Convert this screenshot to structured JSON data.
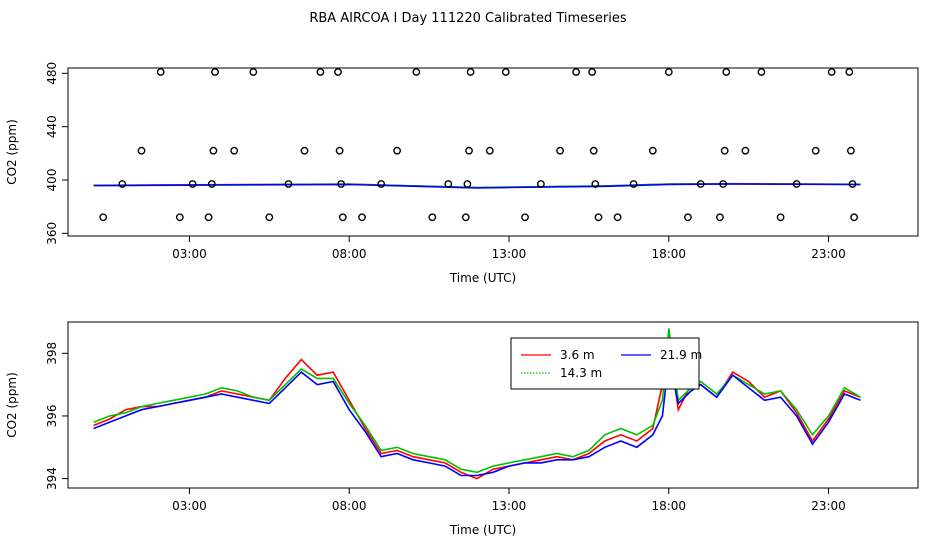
{
  "title": "RBA AIRCOA I  Day 111220  Calibrated Timeseries",
  "colors": {
    "red": "#ff0000",
    "green": "#00c000",
    "blue": "#0000ff",
    "axis": "#000000"
  },
  "chart_data": [
    {
      "type": "scatter+line",
      "xlabel": "Time (UTC)",
      "ylabel": "CO2 (ppm)",
      "xlim_hours": [
        -0.8,
        25.8
      ],
      "ylim": [
        358,
        484
      ],
      "xticks": [
        {
          "hour": 3,
          "label": "03:00"
        },
        {
          "hour": 8,
          "label": "08:00"
        },
        {
          "hour": 13,
          "label": "13:00"
        },
        {
          "hour": 18,
          "label": "18:00"
        },
        {
          "hour": 23,
          "label": "23:00"
        }
      ],
      "yticks": [
        360,
        400,
        440,
        480
      ],
      "ytick_labels": [
        "360",
        "400",
        "440",
        "480"
      ],
      "grid": false,
      "points": [
        {
          "x": 0.3,
          "y": 372
        },
        {
          "x": 0.9,
          "y": 397
        },
        {
          "x": 1.5,
          "y": 422
        },
        {
          "x": 2.1,
          "y": 481
        },
        {
          "x": 2.7,
          "y": 372
        },
        {
          "x": 3.1,
          "y": 397
        },
        {
          "x": 3.6,
          "y": 372
        },
        {
          "x": 3.7,
          "y": 397
        },
        {
          "x": 3.75,
          "y": 422
        },
        {
          "x": 3.8,
          "y": 481
        },
        {
          "x": 4.4,
          "y": 422
        },
        {
          "x": 5.0,
          "y": 481
        },
        {
          "x": 5.5,
          "y": 372
        },
        {
          "x": 6.1,
          "y": 397
        },
        {
          "x": 6.6,
          "y": 422
        },
        {
          "x": 7.1,
          "y": 481
        },
        {
          "x": 7.65,
          "y": 481
        },
        {
          "x": 7.7,
          "y": 422
        },
        {
          "x": 7.75,
          "y": 397
        },
        {
          "x": 7.8,
          "y": 372
        },
        {
          "x": 8.4,
          "y": 372
        },
        {
          "x": 9.0,
          "y": 397
        },
        {
          "x": 9.5,
          "y": 422
        },
        {
          "x": 10.1,
          "y": 481
        },
        {
          "x": 10.6,
          "y": 372
        },
        {
          "x": 11.1,
          "y": 397
        },
        {
          "x": 11.65,
          "y": 372
        },
        {
          "x": 11.7,
          "y": 397
        },
        {
          "x": 11.75,
          "y": 422
        },
        {
          "x": 11.8,
          "y": 481
        },
        {
          "x": 12.4,
          "y": 422
        },
        {
          "x": 12.9,
          "y": 481
        },
        {
          "x": 13.5,
          "y": 372
        },
        {
          "x": 14.0,
          "y": 397
        },
        {
          "x": 14.6,
          "y": 422
        },
        {
          "x": 15.1,
          "y": 481
        },
        {
          "x": 15.6,
          "y": 481
        },
        {
          "x": 15.65,
          "y": 422
        },
        {
          "x": 15.7,
          "y": 397
        },
        {
          "x": 15.8,
          "y": 372
        },
        {
          "x": 16.4,
          "y": 372
        },
        {
          "x": 16.9,
          "y": 397
        },
        {
          "x": 17.5,
          "y": 422
        },
        {
          "x": 18.0,
          "y": 481
        },
        {
          "x": 18.6,
          "y": 372
        },
        {
          "x": 19.0,
          "y": 397
        },
        {
          "x": 19.6,
          "y": 372
        },
        {
          "x": 19.7,
          "y": 397
        },
        {
          "x": 19.75,
          "y": 422
        },
        {
          "x": 19.8,
          "y": 481
        },
        {
          "x": 20.4,
          "y": 422
        },
        {
          "x": 20.9,
          "y": 481
        },
        {
          "x": 21.5,
          "y": 372
        },
        {
          "x": 22.0,
          "y": 397
        },
        {
          "x": 22.6,
          "y": 422
        },
        {
          "x": 23.1,
          "y": 481
        },
        {
          "x": 23.65,
          "y": 481
        },
        {
          "x": 23.7,
          "y": 422
        },
        {
          "x": 23.75,
          "y": 397
        },
        {
          "x": 23.8,
          "y": 372
        }
      ],
      "series": [
        {
          "color": "#ff0000",
          "x": [
            0,
            4,
            8,
            12,
            16,
            18,
            20,
            24
          ],
          "y": [
            396.0,
            396.5,
            396.9,
            394.2,
            395.5,
            397.0,
            397.2,
            396.8
          ]
        },
        {
          "color": "#00c000",
          "x": [
            0,
            4,
            8,
            12,
            16,
            18,
            20,
            24
          ],
          "y": [
            395.9,
            396.4,
            396.8,
            394.4,
            395.6,
            396.9,
            397.1,
            396.7
          ]
        },
        {
          "color": "#0000ff",
          "x": [
            0,
            4,
            8,
            12,
            16,
            18,
            20,
            24
          ],
          "y": [
            395.8,
            396.3,
            396.6,
            394.1,
            395.3,
            396.6,
            397.0,
            396.6
          ]
        }
      ]
    },
    {
      "type": "line",
      "xlabel": "Time (UTC)",
      "ylabel": "CO2 (ppm)",
      "xlim_hours": [
        -0.8,
        25.8
      ],
      "ylim": [
        393.7,
        399.0
      ],
      "xticks": [
        {
          "hour": 3,
          "label": "03:00"
        },
        {
          "hour": 8,
          "label": "08:00"
        },
        {
          "hour": 13,
          "label": "13:00"
        },
        {
          "hour": 18,
          "label": "18:00"
        },
        {
          "hour": 23,
          "label": "23:00"
        }
      ],
      "yticks": [
        394,
        396,
        398
      ],
      "ytick_labels": [
        "394",
        "396",
        "398"
      ],
      "grid": false,
      "legend_position": "top-center",
      "legend": [
        {
          "label": "3.6 m",
          "color": "#ff0000",
          "style": "solid"
        },
        {
          "label": "21.9 m",
          "color": "#0000ff",
          "style": "solid"
        },
        {
          "label": "14.3 m",
          "color": "#00c000",
          "style": "dotted"
        }
      ],
      "series": [
        {
          "name": "3.6 m",
          "color": "#ff0000",
          "x": [
            0,
            0.5,
            1,
            1.5,
            2,
            2.5,
            3,
            3.5,
            4,
            4.5,
            5,
            5.5,
            6,
            6.5,
            7,
            7.5,
            8,
            8.5,
            9,
            9.5,
            10,
            10.5,
            11,
            11.5,
            12,
            12.5,
            13,
            13.5,
            14,
            14.5,
            15,
            15.5,
            16,
            16.5,
            17,
            17.5,
            17.8,
            18,
            18.3,
            18.7,
            19,
            19.5,
            20,
            20.5,
            21,
            21.5,
            22,
            22.5,
            23,
            23.5,
            24
          ],
          "y": [
            395.7,
            395.9,
            396.2,
            396.3,
            396.3,
            396.4,
            396.5,
            396.6,
            396.8,
            396.7,
            396.6,
            396.5,
            397.2,
            397.8,
            397.3,
            397.4,
            396.5,
            395.6,
            394.8,
            394.9,
            394.7,
            394.6,
            394.5,
            394.2,
            394.0,
            394.3,
            394.4,
            394.5,
            394.6,
            394.7,
            394.6,
            394.8,
            395.2,
            395.4,
            395.2,
            395.6,
            397.0,
            398.3,
            396.2,
            397.0,
            397.0,
            396.6,
            397.4,
            397.1,
            396.6,
            396.8,
            396.1,
            395.2,
            395.9,
            396.8,
            396.6
          ]
        },
        {
          "name": "14.3 m",
          "color": "#00c000",
          "x": [
            0,
            0.5,
            1,
            1.5,
            2,
            2.5,
            3,
            3.5,
            4,
            4.5,
            5,
            5.5,
            6,
            6.5,
            7,
            7.5,
            8,
            8.5,
            9,
            9.5,
            10,
            10.5,
            11,
            11.5,
            12,
            12.5,
            13,
            13.5,
            14,
            14.5,
            15,
            15.5,
            16,
            16.5,
            17,
            17.5,
            17.8,
            18,
            18.3,
            18.7,
            19,
            19.5,
            20,
            20.5,
            21,
            21.5,
            22,
            22.5,
            23,
            23.5,
            24
          ],
          "y": [
            395.8,
            396.0,
            396.1,
            396.3,
            396.4,
            396.5,
            396.6,
            396.7,
            396.9,
            396.8,
            396.6,
            396.5,
            397.0,
            397.5,
            397.2,
            397.2,
            396.4,
            395.7,
            394.9,
            395.0,
            394.8,
            394.7,
            394.6,
            394.3,
            394.2,
            394.4,
            394.5,
            394.6,
            394.7,
            394.8,
            394.7,
            394.9,
            395.4,
            395.6,
            395.4,
            395.7,
            396.5,
            398.8,
            396.5,
            396.9,
            397.1,
            396.7,
            397.3,
            397.0,
            396.7,
            396.8,
            396.2,
            395.4,
            396.0,
            396.9,
            396.6
          ]
        },
        {
          "name": "21.9 m",
          "color": "#0000ff",
          "x": [
            0,
            0.5,
            1,
            1.5,
            2,
            2.5,
            3,
            3.5,
            4,
            4.5,
            5,
            5.5,
            6,
            6.5,
            7,
            7.5,
            8,
            8.5,
            9,
            9.5,
            10,
            10.5,
            11,
            11.5,
            12,
            12.5,
            13,
            13.5,
            14,
            14.5,
            15,
            15.5,
            16,
            16.5,
            17,
            17.5,
            17.8,
            18,
            18.3,
            18.7,
            19,
            19.5,
            20,
            20.5,
            21,
            21.5,
            22,
            22.5,
            23,
            23.5,
            24
          ],
          "y": [
            395.6,
            395.8,
            396.0,
            396.2,
            396.3,
            396.4,
            396.5,
            396.6,
            396.7,
            396.6,
            396.5,
            396.4,
            396.9,
            397.4,
            397.0,
            397.1,
            396.2,
            395.5,
            394.7,
            394.8,
            394.6,
            394.5,
            394.4,
            394.1,
            394.1,
            394.2,
            394.4,
            394.5,
            394.5,
            394.6,
            394.6,
            394.7,
            395.0,
            395.2,
            395.0,
            395.4,
            396.0,
            397.8,
            396.4,
            396.8,
            397.0,
            396.6,
            397.3,
            396.9,
            396.5,
            396.6,
            396.0,
            395.1,
            395.8,
            396.7,
            396.5
          ]
        }
      ]
    }
  ]
}
